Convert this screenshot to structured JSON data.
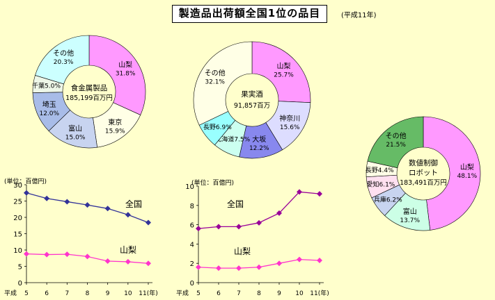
{
  "header": {
    "title": "製造品出荷額全国1位の品目",
    "year_note": "(平成11年)"
  },
  "chart_data": [
    {
      "type": "pie",
      "center_label": [
        "食金属製品",
        "185,199百万円"
      ],
      "slices": [
        {
          "label": "山梨",
          "pct_label": "31.8%",
          "value": 31.8,
          "color": "#FF99FF"
        },
        {
          "label": "東京",
          "pct_label": "15.9%",
          "value": 15.9,
          "color": "#FFFFE6"
        },
        {
          "label": "富山",
          "pct_label": "15.0%",
          "value": 15.0,
          "color": "#C8D4F0"
        },
        {
          "label": "埼玉",
          "pct_label": "12.0%",
          "value": 12.0,
          "color": "#A8BCE8"
        },
        {
          "label": "千葉",
          "pct_label": "5.0%",
          "value": 5.0,
          "color": "#EEF7E8"
        },
        {
          "label": "その他",
          "pct_label": "20.3%",
          "value": 20.3,
          "color": "#CCFFFF"
        }
      ]
    },
    {
      "type": "pie",
      "center_label": [
        "果実酒",
        "91,857百万"
      ],
      "slices": [
        {
          "label": "山梨",
          "pct_label": "25.7%",
          "value": 25.7,
          "color": "#FF99FF"
        },
        {
          "label": "神奈川",
          "pct_label": "15.6%",
          "value": 15.6,
          "color": "#DDDDFF"
        },
        {
          "label": "大坂",
          "pct_label": "12.2%",
          "value": 12.2,
          "color": "#8888EE"
        },
        {
          "label": "北海道",
          "pct_label": "7.5%",
          "value": 7.5,
          "color": "#CCFFF0"
        },
        {
          "label": "長野",
          "pct_label": "6.9%",
          "value": 6.9,
          "color": "#99FFFF"
        },
        {
          "label": "その他",
          "pct_label": "32.1%",
          "value": 32.1,
          "color": "#FFFFE6"
        }
      ]
    },
    {
      "type": "pie",
      "center_label": [
        "数値制御",
        "ロボット",
        "183,491百万円"
      ],
      "slices": [
        {
          "label": "山梨",
          "pct_label": "48.1%",
          "value": 48.1,
          "color": "#FF99FF"
        },
        {
          "label": "富山",
          "pct_label": "13.7%",
          "value": 13.7,
          "color": "#CCFFE6"
        },
        {
          "label": "兵庫",
          "pct_label": "6.2%",
          "value": 6.2,
          "color": "#C8D4F0"
        },
        {
          "label": "愛知",
          "pct_label": "6.1%",
          "value": 6.1,
          "color": "#FFE0F0"
        },
        {
          "label": "長野",
          "pct_label": "4.4%",
          "value": 4.4,
          "color": "#FFFFE6"
        },
        {
          "label": "その他",
          "pct_label": "21.5%",
          "value": 21.5,
          "color": "#66BB66"
        }
      ]
    },
    {
      "type": "line",
      "unit_label": "(単位：百億円)",
      "x_prefix": "平成",
      "x": [
        "5",
        "6",
        "7",
        "8",
        "9",
        "10",
        "11(年)"
      ],
      "ylim": [
        0,
        30
      ],
      "yticks": [
        0,
        5,
        10,
        15,
        20,
        25,
        30
      ],
      "series": [
        {
          "name": "全国",
          "values": [
            27.5,
            25.8,
            24.8,
            23.8,
            22.7,
            20.8,
            18.4
          ],
          "color": "#333399"
        },
        {
          "name": "山梨",
          "values": [
            8.8,
            8.6,
            8.7,
            8.0,
            6.6,
            6.4,
            5.9
          ],
          "color": "#FF33CC"
        }
      ]
    },
    {
      "type": "line",
      "unit_label": "(単位：百億円)",
      "x_prefix": "平成",
      "x": [
        "5",
        "6",
        "7",
        "8",
        "9",
        "10",
        "11(年)"
      ],
      "ylim": [
        0,
        10
      ],
      "yticks": [
        0,
        2,
        4,
        6,
        8,
        10
      ],
      "series": [
        {
          "name": "全国",
          "values": [
            5.6,
            5.8,
            5.8,
            6.2,
            7.2,
            9.4,
            9.2
          ],
          "color": "#990099"
        },
        {
          "name": "山梨",
          "values": [
            1.6,
            1.5,
            1.5,
            1.6,
            2.0,
            2.4,
            2.3
          ],
          "color": "#FF33CC"
        }
      ]
    }
  ]
}
